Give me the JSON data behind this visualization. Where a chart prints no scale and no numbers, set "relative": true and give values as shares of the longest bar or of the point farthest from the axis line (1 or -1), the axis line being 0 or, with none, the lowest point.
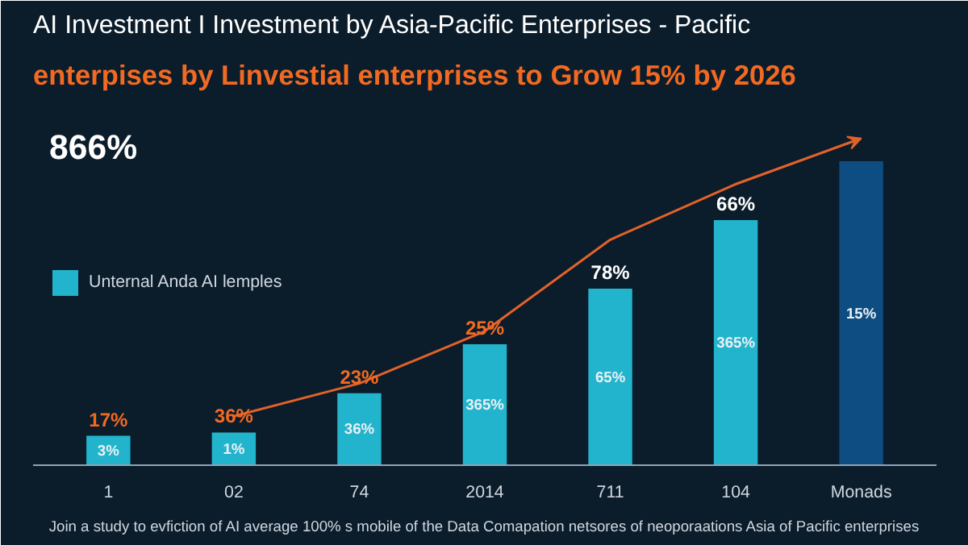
{
  "chart_data": {
    "type": "bar",
    "title": "AI Investment I Investment by Asia-Pacific Enterprises - Pacific",
    "subtitle": "enterpises by Linvestial enterprises to Grow 15% by 2026",
    "relative": true,
    "categories": [
      "1",
      "02",
      "74",
      "2014",
      "711",
      "104",
      "Monads"
    ],
    "series": [
      {
        "name": "Unternal Anda AI lemples",
        "color": "#22b4cc",
        "values": [
          0.09,
          0.1,
          0.22,
          0.37,
          0.54,
          0.75,
          null
        ]
      },
      {
        "color": "#0e4d82",
        "values": [
          null,
          null,
          null,
          null,
          null,
          null,
          0.93
        ]
      },
      {
        "type": "line",
        "color": "#e0622a",
        "values": [
          null,
          0.15,
          0.25,
          0.41,
          0.69,
          0.86,
          1.0
        ]
      }
    ],
    "annotations": [
      "866%",
      "Join a study to evfiction of AI average 100% s mobile of the Data Comapation netsores of neoporaations Asia of Pacific enterprises",
      "17%",
      "36%",
      "23%",
      "25%",
      "78%",
      "66%",
      "3%",
      "1%",
      "36%",
      "365%",
      "65%",
      "365%",
      "15%"
    ],
    "legend": "left",
    "marker": "none",
    "grid": false
  }
}
